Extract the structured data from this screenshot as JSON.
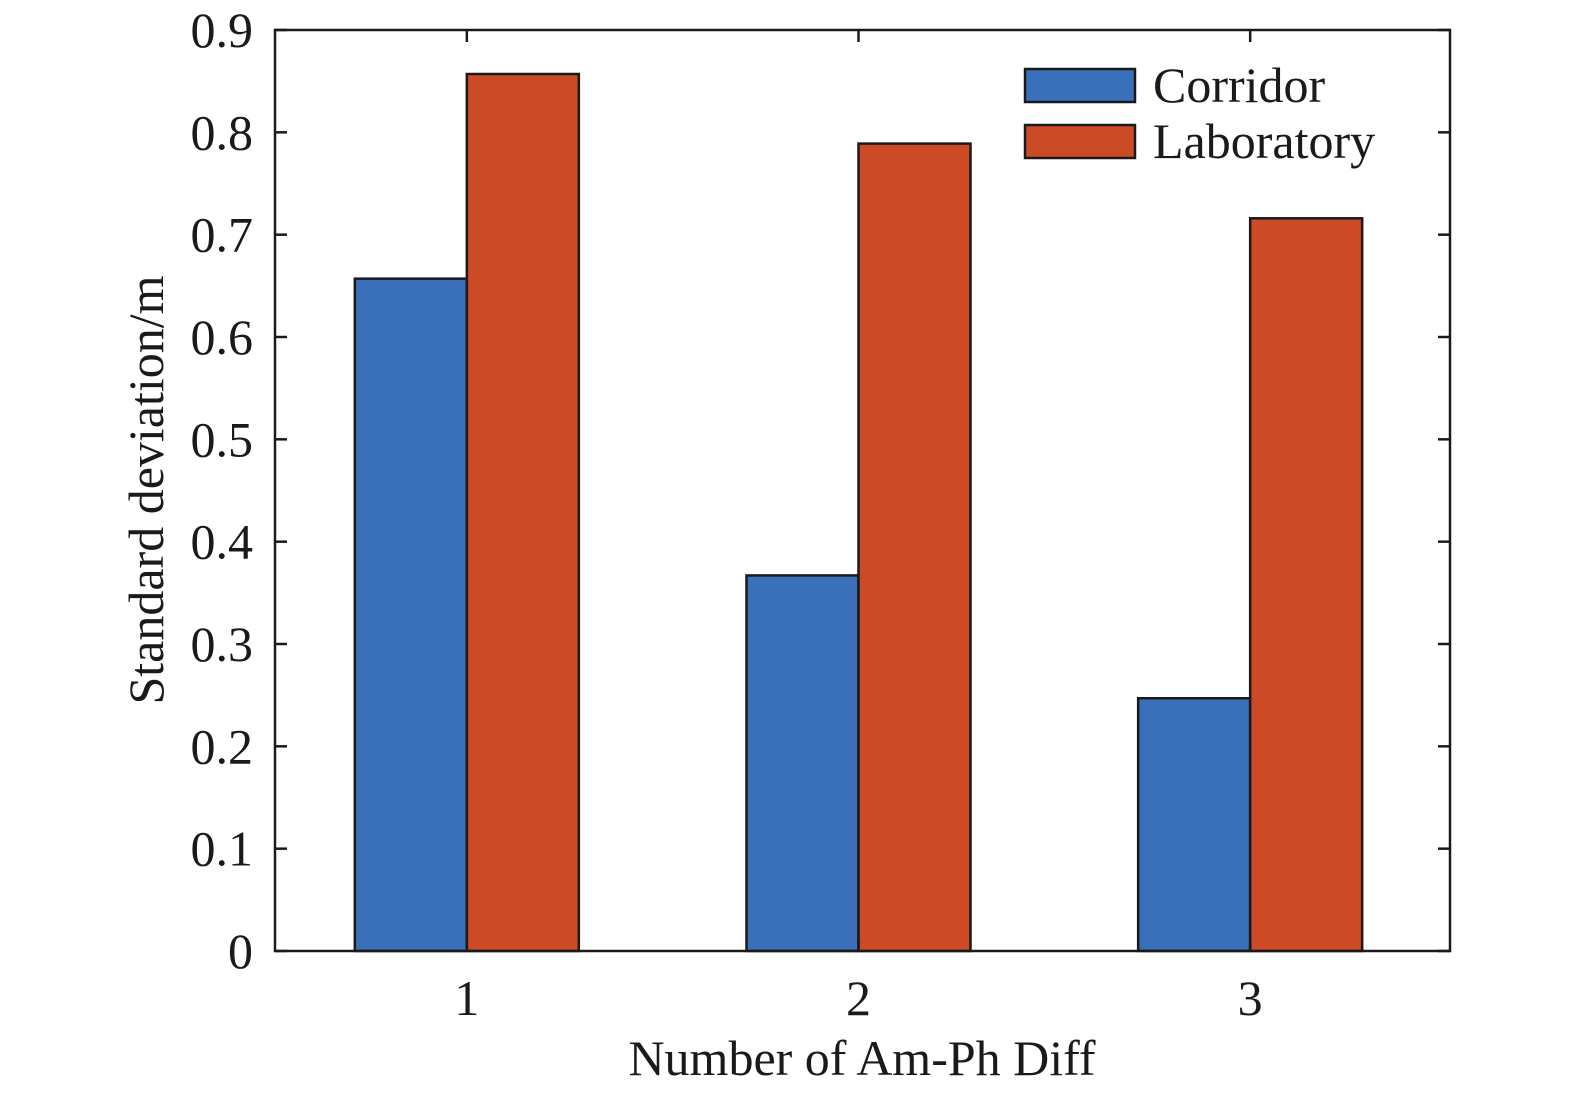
{
  "chart_data": {
    "type": "bar",
    "categories": [
      "1",
      "2",
      "3"
    ],
    "series": [
      {
        "name": "Corridor",
        "color": "#3a6fba",
        "values": [
          0.657,
          0.367,
          0.247
        ]
      },
      {
        "name": "Laboratory",
        "color": "#cc4a26",
        "values": [
          0.857,
          0.789,
          0.716
        ]
      }
    ],
    "xlabel": "Number of Am-Ph Diff",
    "ylabel": "Standard deviation/m",
    "ylim": [
      0,
      0.9
    ],
    "yticks": [
      "0",
      "0.1",
      "0.2",
      "0.3",
      "0.4",
      "0.5",
      "0.6",
      "0.7",
      "0.8",
      "0.9"
    ],
    "grid": false,
    "legend_position": "top-right"
  }
}
